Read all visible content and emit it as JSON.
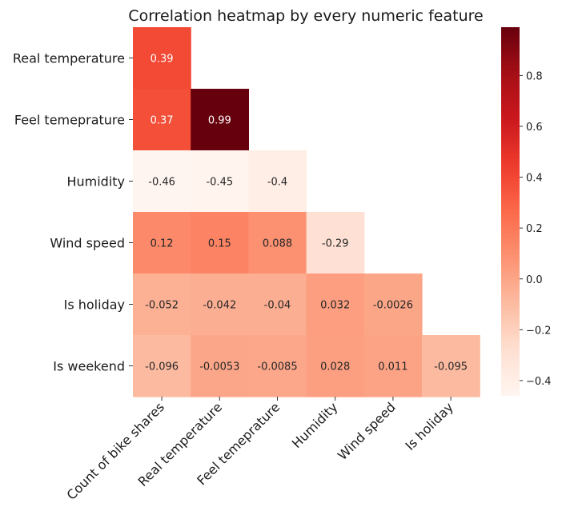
{
  "chart_data": {
    "type": "heatmap",
    "title": "Correlation heatmap by every numeric feature",
    "row_labels": [
      "Real temperature",
      "Feel temeprature",
      "Humidity",
      "Wind speed",
      "Is holiday",
      "Is weekend"
    ],
    "col_labels": [
      "Count of bike shares",
      "Real temperature",
      "Feel temeprature",
      "Humidity",
      "Wind speed",
      "Is holiday"
    ],
    "cells": [
      {
        "row": 0,
        "col": 0,
        "value": 0.39,
        "label": "0.39"
      },
      {
        "row": 1,
        "col": 0,
        "value": 0.37,
        "label": "0.37"
      },
      {
        "row": 1,
        "col": 1,
        "value": 0.99,
        "label": "0.99"
      },
      {
        "row": 2,
        "col": 0,
        "value": -0.46,
        "label": "-0.46"
      },
      {
        "row": 2,
        "col": 1,
        "value": -0.45,
        "label": "-0.45"
      },
      {
        "row": 2,
        "col": 2,
        "value": -0.4,
        "label": "-0.4"
      },
      {
        "row": 3,
        "col": 0,
        "value": 0.12,
        "label": "0.12"
      },
      {
        "row": 3,
        "col": 1,
        "value": 0.15,
        "label": "0.15"
      },
      {
        "row": 3,
        "col": 2,
        "value": 0.088,
        "label": "0.088"
      },
      {
        "row": 3,
        "col": 3,
        "value": -0.29,
        "label": "-0.29"
      },
      {
        "row": 4,
        "col": 0,
        "value": -0.052,
        "label": "-0.052"
      },
      {
        "row": 4,
        "col": 1,
        "value": -0.042,
        "label": "-0.042"
      },
      {
        "row": 4,
        "col": 2,
        "value": -0.04,
        "label": "-0.04"
      },
      {
        "row": 4,
        "col": 3,
        "value": 0.032,
        "label": "0.032"
      },
      {
        "row": 4,
        "col": 4,
        "value": -0.0026,
        "label": "-0.0026"
      },
      {
        "row": 5,
        "col": 0,
        "value": -0.096,
        "label": "-0.096"
      },
      {
        "row": 5,
        "col": 1,
        "value": -0.0053,
        "label": "-0.0053"
      },
      {
        "row": 5,
        "col": 2,
        "value": -0.0085,
        "label": "-0.0085"
      },
      {
        "row": 5,
        "col": 3,
        "value": 0.028,
        "label": "0.028"
      },
      {
        "row": 5,
        "col": 4,
        "value": 0.011,
        "label": "0.011"
      },
      {
        "row": 5,
        "col": 5,
        "value": -0.095,
        "label": "-0.095"
      }
    ],
    "colormap": "Reds",
    "colorbar": {
      "range": [
        -0.46,
        0.99
      ],
      "ticks": [
        -0.4,
        -0.2,
        0.0,
        0.2,
        0.4,
        0.6,
        0.8
      ],
      "tick_labels": [
        "−0.4",
        "−0.2",
        "0.0",
        "0.2",
        "0.4",
        "0.6",
        "0.8"
      ]
    },
    "mask": "upper triangle hidden",
    "grid": false
  }
}
